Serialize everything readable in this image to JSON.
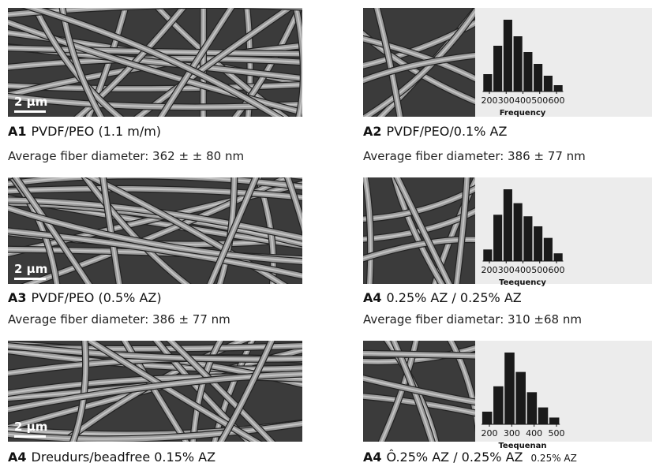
{
  "panels": [
    {
      "label": "A1",
      "title": "PVDF/PEO (1.1 m/m)",
      "caption": "Average fiber diameter:  362 ± ± 80 nm",
      "scale_bar": "2 µm"
    },
    {
      "label": "A2",
      "title": "PVDF/PEO/0.1% AZ",
      "caption": "Average fiber diameter: 386 ± 77 nm",
      "histogram": {
        "type": "histogram",
        "bins": [
          160,
          220,
          280,
          340,
          400,
          460,
          520,
          580,
          640
        ],
        "counts": [
          22,
          58,
          91,
          70,
          50,
          35,
          20,
          8
        ],
        "xticks": [
          200,
          300,
          400,
          500,
          600
        ],
        "xlabel": "Frequency"
      }
    },
    {
      "label": "A3",
      "title": "PVDF/PEO (0.5% AZ)",
      "caption": "Average fiber diameter:  386  ±  77 nm",
      "scale_bar": "2 µm"
    },
    {
      "label": "A4",
      "title": "0.25% AZ / 0.25% AZ",
      "caption": "Average fiber diametar: 310 ±68 nm",
      "histogram": {
        "type": "histogram",
        "bins": [
          160,
          220,
          280,
          340,
          400,
          460,
          520,
          580,
          640
        ],
        "counts": [
          15,
          60,
          93,
          75,
          58,
          45,
          30,
          10
        ],
        "xticks": [
          200,
          300,
          400,
          500,
          600
        ],
        "xlabel": "Teequency"
      }
    },
    {
      "label": "A4",
      "title": "Dreudurs/beadfree 0.15% AZ",
      "scale_bar": "2 µm"
    },
    {
      "label": "A4",
      "title": "Ô.25% AZ / 0.25% AZ",
      "note": "0.25% AZ",
      "histogram": {
        "type": "histogram",
        "bins": [
          165,
          215,
          265,
          315,
          365,
          415,
          465,
          515
        ],
        "counts": [
          15,
          45,
          85,
          62,
          38,
          20,
          8
        ],
        "xticks": [
          200,
          300,
          400,
          500
        ],
        "xlabel": "Teequenan"
      }
    }
  ]
}
